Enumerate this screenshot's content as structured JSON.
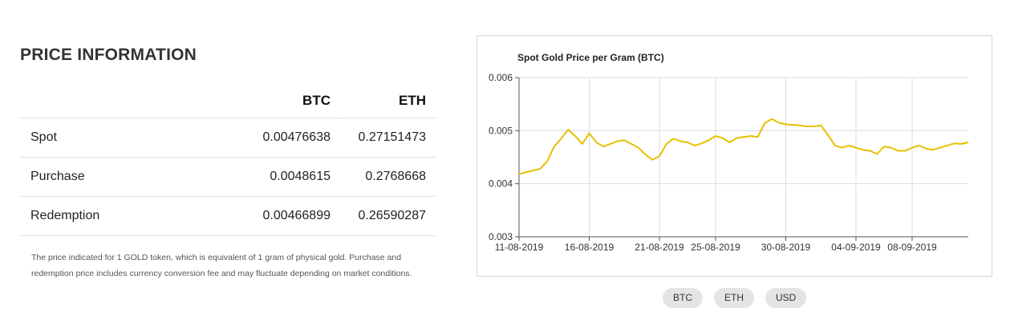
{
  "price_info": {
    "title": "PRICE INFORMATION",
    "columns": [
      "BTC",
      "ETH"
    ],
    "rows": [
      {
        "label": "Spot",
        "btc": "0.00476638",
        "eth": "0.27151473"
      },
      {
        "label": "Purchase",
        "btc": "0.0048615",
        "eth": "0.2768668"
      },
      {
        "label": "Redemption",
        "btc": "0.00466899",
        "eth": "0.26590287"
      }
    ],
    "note": "The price indicated for 1 GOLD token, which is equivalent of 1 gram of physical gold. Purchase and redemption price includes currency conversion fee and may fluctuate depending on market conditions."
  },
  "currency_buttons": [
    "BTC",
    "ETH",
    "USD"
  ],
  "colors": {
    "line": "#e6c000",
    "grid": "#dddddd",
    "axis": "#555555"
  },
  "chart_data": {
    "type": "line",
    "title": "Spot Gold Price per Gram (BTC)",
    "xlabel": "",
    "ylabel": "",
    "ylim": [
      0.003,
      0.006
    ],
    "y_ticks": [
      "0.003",
      "0.004",
      "0.005",
      "0.006"
    ],
    "x_range": [
      "2019-08-11",
      "2019-09-12"
    ],
    "x_ticks": [
      "11-08-2019",
      "16-08-2019",
      "21-08-2019",
      "25-08-2019",
      "30-08-2019",
      "04-09-2019",
      "08-09-2019"
    ],
    "x_tick_dates": [
      "2019-08-11",
      "2019-08-16",
      "2019-08-21",
      "2019-08-25",
      "2019-08-30",
      "2019-09-04",
      "2019-09-08"
    ],
    "grid": true,
    "legend": "none",
    "series": [
      {
        "x": [
          "2019-08-11",
          "2019-08-11T12:00",
          "2019-08-12",
          "2019-08-12T12:00",
          "2019-08-13",
          "2019-08-13T12:00",
          "2019-08-14",
          "2019-08-14T12:00",
          "2019-08-15",
          "2019-08-15T12:00",
          "2019-08-16",
          "2019-08-16T12:00",
          "2019-08-17",
          "2019-08-17T12:00",
          "2019-08-18",
          "2019-08-18T12:00",
          "2019-08-19",
          "2019-08-19T12:00",
          "2019-08-20",
          "2019-08-20T12:00",
          "2019-08-21",
          "2019-08-21T12:00",
          "2019-08-22",
          "2019-08-22T12:00",
          "2019-08-23",
          "2019-08-23T12:00",
          "2019-08-24",
          "2019-08-24T12:00",
          "2019-08-25",
          "2019-08-25T12:00",
          "2019-08-26",
          "2019-08-26T12:00",
          "2019-08-27",
          "2019-08-27T12:00",
          "2019-08-28",
          "2019-08-28T12:00",
          "2019-08-29",
          "2019-08-29T12:00",
          "2019-08-30",
          "2019-08-30T12:00",
          "2019-08-31",
          "2019-08-31T12:00",
          "2019-09-01",
          "2019-09-01T12:00",
          "2019-09-02",
          "2019-09-02T12:00",
          "2019-09-03",
          "2019-09-03T12:00",
          "2019-09-04",
          "2019-09-04T12:00",
          "2019-09-05",
          "2019-09-05T12:00",
          "2019-09-06",
          "2019-09-06T12:00",
          "2019-09-07",
          "2019-09-07T12:00",
          "2019-09-08",
          "2019-09-08T12:00",
          "2019-09-09",
          "2019-09-09T12:00",
          "2019-09-10",
          "2019-09-10T12:00",
          "2019-09-11",
          "2019-09-11T12:00",
          "2019-09-12"
        ],
        "y": [
          0.00418,
          0.00422,
          0.00425,
          0.00428,
          0.00442,
          0.0047,
          0.00485,
          0.00502,
          0.0049,
          0.00475,
          0.00495,
          0.00478,
          0.0047,
          0.00475,
          0.0048,
          0.00482,
          0.00475,
          0.00468,
          0.00455,
          0.00445,
          0.00452,
          0.00475,
          0.00485,
          0.0048,
          0.00478,
          0.00472,
          0.00476,
          0.00482,
          0.0049,
          0.00486,
          0.00478,
          0.00486,
          0.00488,
          0.0049,
          0.00488,
          0.00514,
          0.00522,
          0.00515,
          0.00512,
          0.00511,
          0.0051,
          0.00508,
          0.00508,
          0.0051,
          0.00492,
          0.00472,
          0.00468,
          0.00472,
          0.00468,
          0.00464,
          0.00462,
          0.00456,
          0.0047,
          0.00468,
          0.00462,
          0.00462,
          0.00468,
          0.00472,
          0.00466,
          0.00464,
          0.00468,
          0.00472,
          0.00476,
          0.00475,
          0.00478
        ]
      }
    ]
  }
}
